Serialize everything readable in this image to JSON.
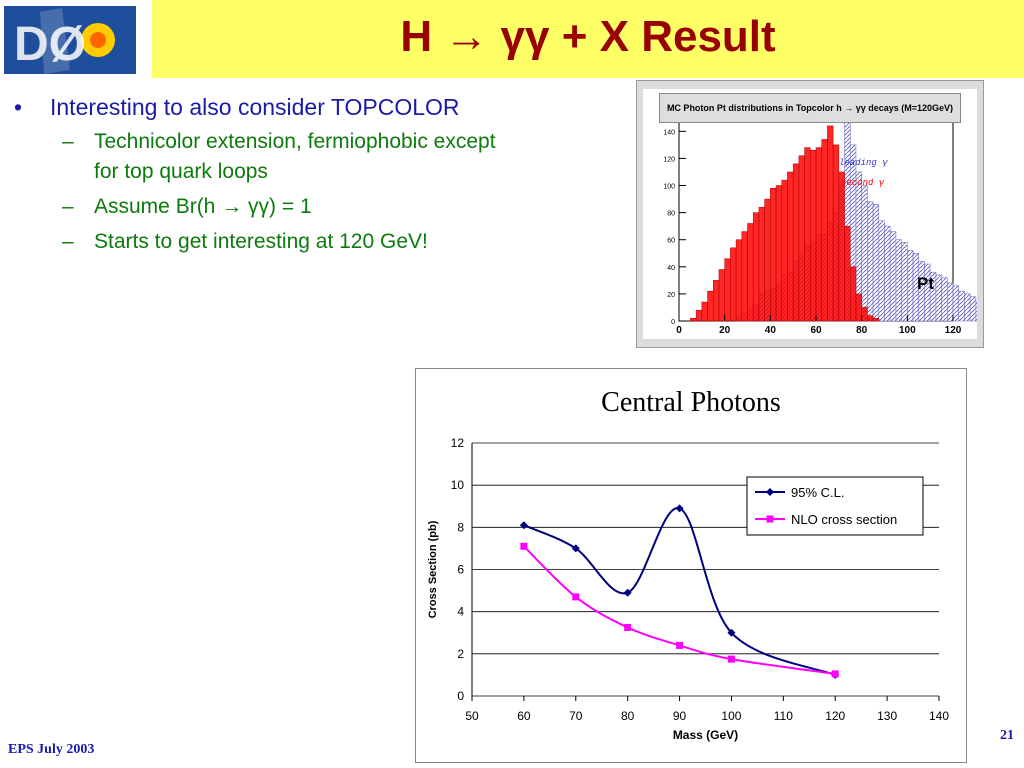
{
  "slide": {
    "title": "H → γγ + X Result",
    "footer_left": "EPS July 2003",
    "page_number": "21"
  },
  "logo": {
    "text": "DØ"
  },
  "bullets": {
    "main": "Interesting to also consider TOPCOLOR",
    "subs": [
      "Technicolor extension, fermiophobic except for top quark loops",
      "Assume Br(h → γγ) = 1",
      "Starts to get interesting at 120 GeV!"
    ]
  },
  "chart_data": [
    {
      "type": "bar",
      "title": "MC Photon Pt distributions in Topcolor h → γγ decays (M=120GeV)",
      "xlabel": "Pt",
      "xlim": [
        0,
        120
      ],
      "ylim": [
        0,
        155
      ],
      "xticks": [
        "0",
        "20",
        "40",
        "60",
        "80",
        "100",
        "120"
      ],
      "yticks": [
        "0",
        "20",
        "40",
        "60",
        "80",
        "100",
        "120",
        "140"
      ],
      "bin_width": 2.5,
      "series": [
        {
          "name": "leading γ",
          "color": "#7777cc",
          "values": [
            0,
            0,
            0,
            0,
            0,
            0,
            0,
            0,
            0,
            0,
            4,
            6,
            8,
            12,
            20,
            22,
            24,
            28,
            34,
            36,
            44,
            48,
            56,
            58,
            64,
            64,
            72,
            80,
            100,
            148,
            130,
            110,
            100,
            88,
            86,
            74,
            70,
            66,
            60,
            58,
            52,
            50,
            44,
            42,
            36,
            34,
            32,
            28,
            26,
            22,
            20,
            18,
            14,
            12
          ]
        },
        {
          "name": "second γ",
          "color": "#ff0000",
          "values": [
            0,
            0,
            2,
            8,
            14,
            22,
            30,
            38,
            46,
            54,
            60,
            66,
            72,
            80,
            84,
            90,
            98,
            100,
            104,
            110,
            116,
            122,
            128,
            126,
            128,
            134,
            144,
            130,
            110,
            70,
            40,
            20,
            10,
            4,
            2,
            0,
            0,
            0,
            0,
            0,
            0,
            0,
            0,
            0,
            0,
            0,
            0,
            0,
            0,
            0,
            0,
            0,
            0,
            0
          ]
        }
      ]
    },
    {
      "type": "line",
      "title": "Central Photons",
      "xlabel": "Mass (GeV)",
      "ylabel": "Cross Section  (pb)",
      "xlim": [
        50,
        140
      ],
      "ylim": [
        0,
        12
      ],
      "xticks": [
        "50",
        "60",
        "70",
        "80",
        "90",
        "100",
        "110",
        "120",
        "130",
        "140"
      ],
      "yticks": [
        "0",
        "2",
        "4",
        "6",
        "8",
        "10",
        "12"
      ],
      "grid": true,
      "legend": "top-right",
      "series": [
        {
          "name": "95% C.L.",
          "color": "#000080",
          "marker": "diamond",
          "x": [
            60,
            70,
            80,
            90,
            100,
            120
          ],
          "y": [
            8.1,
            7.0,
            4.9,
            8.9,
            3.0,
            1.0
          ]
        },
        {
          "name": "NLO cross section",
          "color": "#ff00ff",
          "marker": "square",
          "x": [
            60,
            70,
            80,
            90,
            100,
            120
          ],
          "y": [
            7.1,
            4.7,
            3.25,
            2.4,
            1.75,
            1.05
          ]
        }
      ]
    }
  ]
}
